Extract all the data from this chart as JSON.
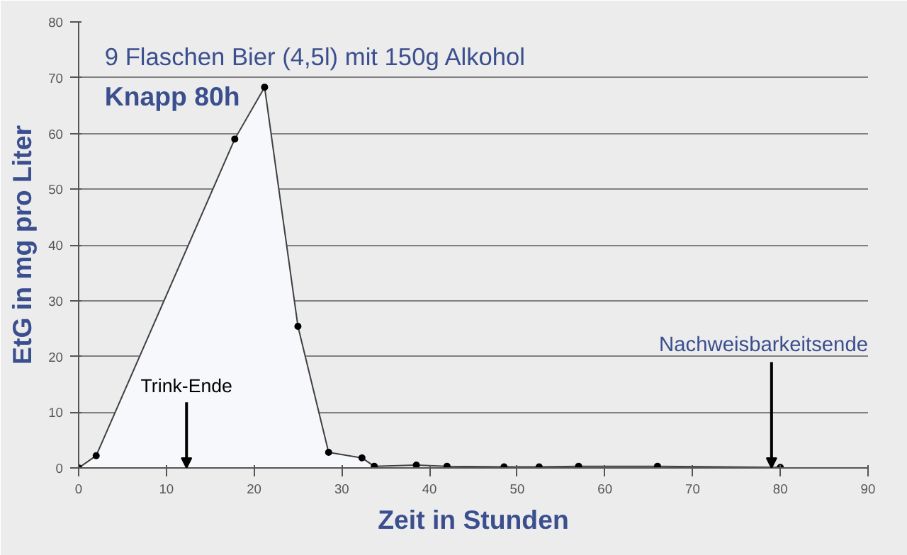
{
  "chart_data": {
    "type": "area",
    "title": "9 Flaschen Bier (4,5l) mit 150g Alkohol",
    "subtitle": "Knapp 80h",
    "xlabel": "Zeit in Stunden",
    "ylabel": "EtG in mg pro Liter",
    "x": [
      0,
      2,
      17.8,
      21.2,
      25,
      28.5,
      32.3,
      33.7,
      38.5,
      42,
      48.5,
      52.5,
      57,
      66,
      80
    ],
    "series": [
      {
        "color": "#404040",
        "values": [
          0,
          2.2,
          59,
          68.3,
          25.4,
          2.8,
          1.8,
          0.3,
          0.5,
          0.3,
          0.2,
          0.2,
          0.3,
          0.3,
          0.1
        ]
      }
    ],
    "xlim": [
      0,
      90
    ],
    "xticks": [
      0,
      10,
      20,
      30,
      40,
      50,
      60,
      70,
      80,
      90
    ],
    "ylim": [
      0,
      80
    ],
    "yticks": [
      0,
      10,
      20,
      30,
      40,
      50,
      60,
      70,
      80
    ],
    "grid": "y",
    "marker": "circle",
    "line_style": "solid",
    "annotations": [
      {
        "text": "Trink-Ende",
        "x": 12.3,
        "y": 0
      },
      {
        "text": "Nachweisbarkeitsende",
        "x": 79,
        "y": 0
      }
    ]
  }
}
